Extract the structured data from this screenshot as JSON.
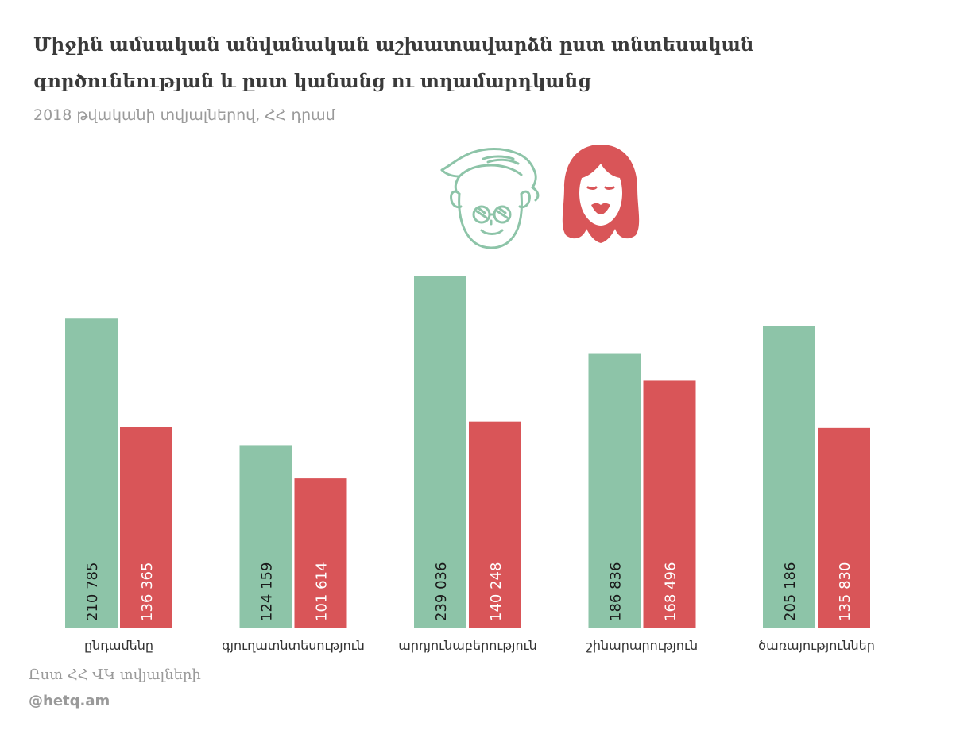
{
  "header": {
    "title": "Միջին ամսական անվանական աշխատավարձն ըստ տնտեսական գործունեության և ըստ կանանց ու տղամարդկանց",
    "subtitle": "2018 թվականի տվյալներով, ՀՀ դրամ"
  },
  "footer": {
    "source": "Ըստ ՀՀ ՎԿ տվյալների",
    "brand": "@hetq.am"
  },
  "icons": {
    "male": "man-face-icon",
    "female": "woman-face-icon"
  },
  "colors": {
    "men": "#8dc4a8",
    "women": "#d95558",
    "axis": "#cccccc",
    "label": "#1a1a1a"
  },
  "chart_data": {
    "type": "bar",
    "categories": [
      "ընդամենը",
      "գյուղատնտեսություն",
      "արդյունաբերություն",
      "շինարարություն",
      "ծառայություններ"
    ],
    "series": [
      {
        "values": [
          210785,
          124159,
          239036,
          186836,
          205186
        ]
      },
      {
        "values": [
          136365,
          101614,
          140248,
          168496,
          135830
        ]
      }
    ],
    "value_labels": [
      [
        "210 785",
        "124 159",
        "239 036",
        "186 836",
        "205 186"
      ],
      [
        "136 365",
        "101 614",
        "140 248",
        "168 496",
        "135 830"
      ]
    ],
    "ylim": [
      0,
      265000
    ],
    "grid": false,
    "legend": "icons above bars"
  }
}
